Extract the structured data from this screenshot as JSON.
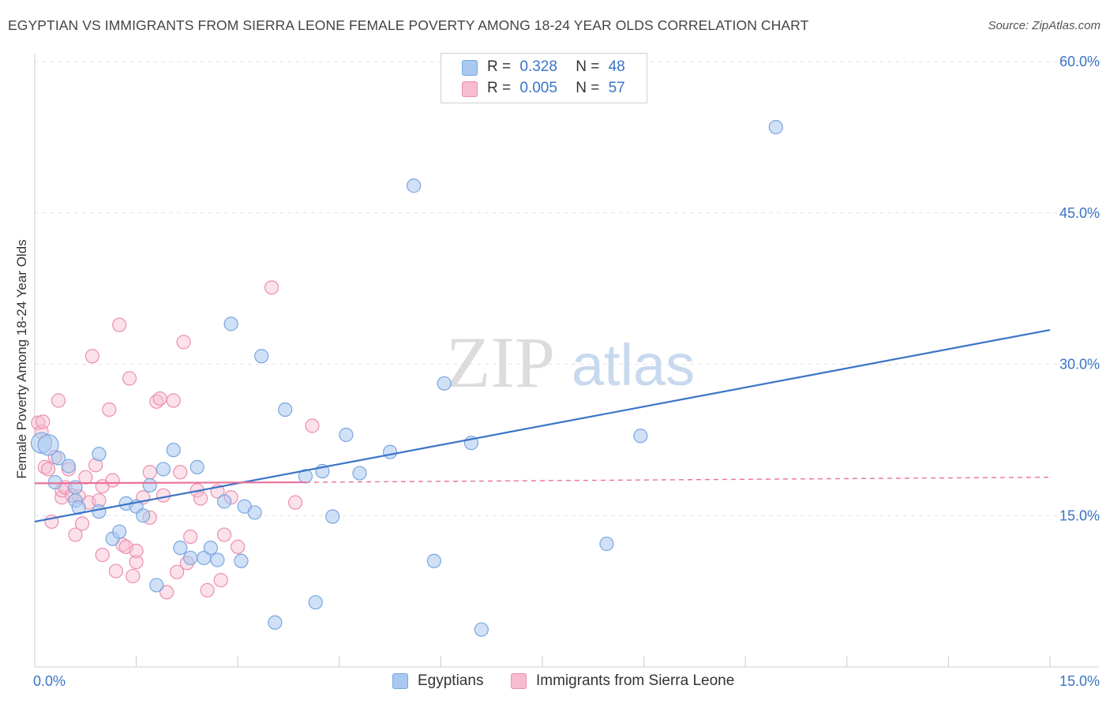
{
  "header": {
    "title": "EGYPTIAN VS IMMIGRANTS FROM SIERRA LEONE FEMALE POVERTY AMONG 18-24 YEAR OLDS CORRELATION CHART",
    "source": "Source: ZipAtlas.com"
  },
  "watermark": {
    "zip": "ZIP",
    "atlas": "atlas"
  },
  "legend": {
    "rows": [
      {
        "r_label": "R =",
        "r_value": "0.328",
        "n_label": "N =",
        "n_value": "48",
        "color": "#aac8f0",
        "border": "#7aa6df"
      },
      {
        "r_label": "R =",
        "r_value": "0.005",
        "n_label": "N =",
        "n_value": "57",
        "color": "#f7bcd0",
        "border": "#ec8fae"
      }
    ]
  },
  "bottom_legend": [
    {
      "label": "Egyptians",
      "color": "#aac8f0",
      "border": "#7aa6df"
    },
    {
      "label": "Immigrants from Sierra Leone",
      "color": "#f7bcd0",
      "border": "#ec8fae"
    }
  ],
  "chart_data": {
    "type": "scatter",
    "title": "EGYPTIAN VS IMMIGRANTS FROM SIERRA LEONE FEMALE POVERTY AMONG 18-24 YEAR OLDS CORRELATION CHART",
    "xlabel": "",
    "ylabel": "Female Poverty Among 18-24 Year Olds",
    "xlim": [
      0,
      15
    ],
    "ylim": [
      0,
      60
    ],
    "x_tick_labels": [
      "0.0%",
      "15.0%"
    ],
    "y_ticks": [
      15,
      30,
      45,
      60
    ],
    "y_tick_labels": [
      "15.0%",
      "30.0%",
      "45.0%",
      "60.0%"
    ],
    "grid": true,
    "colors": {
      "egyptians": "#3a74c8",
      "sierra_leone": "#e8719a",
      "axis_text": "#3a74c8"
    },
    "series": [
      {
        "name": "Egyptians",
        "r": 0.328,
        "n": 48,
        "trend": {
          "x": [
            0,
            15
          ],
          "y": [
            14.4,
            33.4
          ],
          "style": "solid"
        },
        "points": [
          [
            0.1,
            22.2
          ],
          [
            0.2,
            22.0
          ],
          [
            0.3,
            18.3
          ],
          [
            0.35,
            20.7
          ],
          [
            0.5,
            19.9
          ],
          [
            0.6,
            17.8
          ],
          [
            0.6,
            16.5
          ],
          [
            0.65,
            15.8
          ],
          [
            0.95,
            15.4
          ],
          [
            0.95,
            21.1
          ],
          [
            1.15,
            12.7
          ],
          [
            1.25,
            13.4
          ],
          [
            1.35,
            16.2
          ],
          [
            1.5,
            15.9
          ],
          [
            1.6,
            15.0
          ],
          [
            1.7,
            18.0
          ],
          [
            1.8,
            8.1
          ],
          [
            1.9,
            19.6
          ],
          [
            2.05,
            21.5
          ],
          [
            2.15,
            11.8
          ],
          [
            2.3,
            10.8
          ],
          [
            2.4,
            19.8
          ],
          [
            2.5,
            10.8
          ],
          [
            2.6,
            11.8
          ],
          [
            2.7,
            10.6
          ],
          [
            2.8,
            16.4
          ],
          [
            2.9,
            34.0
          ],
          [
            3.05,
            10.5
          ],
          [
            3.1,
            15.9
          ],
          [
            3.25,
            15.3
          ],
          [
            3.35,
            30.8
          ],
          [
            3.55,
            4.4
          ],
          [
            3.7,
            25.5
          ],
          [
            4.0,
            18.9
          ],
          [
            4.15,
            6.4
          ],
          [
            4.25,
            19.4
          ],
          [
            4.4,
            14.9
          ],
          [
            4.6,
            23.0
          ],
          [
            4.8,
            19.2
          ],
          [
            5.25,
            21.3
          ],
          [
            5.6,
            47.7
          ],
          [
            5.9,
            10.5
          ],
          [
            6.05,
            28.1
          ],
          [
            6.45,
            22.2
          ],
          [
            6.6,
            3.7
          ],
          [
            8.45,
            12.2
          ],
          [
            8.95,
            22.9
          ],
          [
            10.95,
            53.5
          ]
        ]
      },
      {
        "name": "Immigrants from Sierra Leone",
        "r": 0.005,
        "n": 57,
        "trend": {
          "x": [
            0,
            4.0,
            15
          ],
          "y": [
            18.2,
            18.3,
            18.8
          ],
          "style": "solid-then-dashed"
        },
        "points": [
          [
            0.05,
            24.2
          ],
          [
            0.1,
            23.3
          ],
          [
            0.12,
            24.3
          ],
          [
            0.15,
            19.8
          ],
          [
            0.2,
            19.6
          ],
          [
            0.25,
            14.4
          ],
          [
            0.3,
            20.8
          ],
          [
            0.35,
            26.4
          ],
          [
            0.4,
            16.8
          ],
          [
            0.4,
            17.5
          ],
          [
            0.45,
            17.8
          ],
          [
            0.5,
            19.6
          ],
          [
            0.55,
            17.0
          ],
          [
            0.6,
            13.1
          ],
          [
            0.65,
            16.9
          ],
          [
            0.7,
            14.2
          ],
          [
            0.75,
            18.8
          ],
          [
            0.8,
            16.3
          ],
          [
            0.85,
            30.8
          ],
          [
            0.9,
            20.0
          ],
          [
            0.95,
            16.5
          ],
          [
            1.0,
            17.9
          ],
          [
            1.0,
            11.1
          ],
          [
            1.1,
            25.5
          ],
          [
            1.15,
            18.5
          ],
          [
            1.2,
            9.5
          ],
          [
            1.25,
            33.9
          ],
          [
            1.3,
            12.1
          ],
          [
            1.35,
            11.9
          ],
          [
            1.4,
            28.6
          ],
          [
            1.45,
            9.0
          ],
          [
            1.5,
            10.4
          ],
          [
            1.5,
            11.5
          ],
          [
            1.6,
            16.8
          ],
          [
            1.7,
            19.3
          ],
          [
            1.7,
            14.8
          ],
          [
            1.8,
            26.3
          ],
          [
            1.85,
            26.6
          ],
          [
            1.9,
            17.0
          ],
          [
            1.95,
            7.4
          ],
          [
            2.05,
            26.4
          ],
          [
            2.1,
            9.4
          ],
          [
            2.15,
            19.3
          ],
          [
            2.2,
            32.2
          ],
          [
            2.25,
            10.3
          ],
          [
            2.3,
            12.9
          ],
          [
            2.4,
            17.5
          ],
          [
            2.45,
            16.7
          ],
          [
            2.55,
            7.6
          ],
          [
            2.7,
            17.4
          ],
          [
            2.75,
            8.6
          ],
          [
            2.8,
            13.1
          ],
          [
            2.9,
            16.8
          ],
          [
            3.0,
            11.9
          ],
          [
            3.5,
            37.6
          ],
          [
            3.85,
            16.3
          ],
          [
            4.1,
            23.9
          ]
        ]
      }
    ]
  }
}
